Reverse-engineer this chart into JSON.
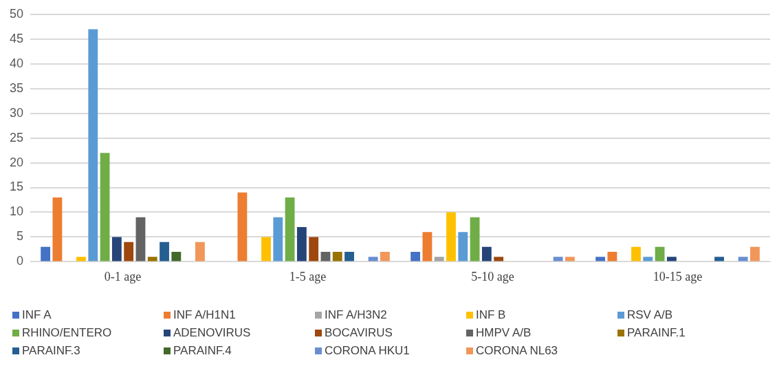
{
  "chart_data": {
    "type": "bar",
    "categories": [
      "0-1 age",
      "1-5 age",
      "5-10 age",
      "10-15 age"
    ],
    "series": [
      {
        "name": "INF A",
        "color": "#4472c4",
        "values": [
          3,
          0,
          2,
          1
        ]
      },
      {
        "name": "INF A/H1N1",
        "color": "#ed7d31",
        "values": [
          13,
          14,
          6,
          2
        ]
      },
      {
        "name": "INF A/H3N2",
        "color": "#a5a5a5",
        "values": [
          0,
          0,
          1,
          0
        ]
      },
      {
        "name": "INF B",
        "color": "#ffc000",
        "values": [
          1,
          5,
          10,
          3
        ]
      },
      {
        "name": "RSV A/B",
        "color": "#5b9bd5",
        "values": [
          47,
          9,
          6,
          1
        ]
      },
      {
        "name": "RHINO/ENTERO",
        "color": "#70ad47",
        "values": [
          22,
          13,
          9,
          3
        ]
      },
      {
        "name": "ADENOVIRUS",
        "color": "#264478",
        "values": [
          5,
          7,
          3,
          1
        ]
      },
      {
        "name": "BOCAVIRUS",
        "color": "#9e480e",
        "values": [
          4,
          5,
          1,
          0
        ]
      },
      {
        "name": "HMPV A/B",
        "color": "#636363",
        "values": [
          9,
          2,
          0,
          0
        ]
      },
      {
        "name": "PARAINF.1",
        "color": "#997300",
        "values": [
          1,
          2,
          0,
          0
        ]
      },
      {
        "name": "PARAINF.3",
        "color": "#255e91",
        "values": [
          4,
          2,
          0,
          1
        ]
      },
      {
        "name": "PARAINF.4",
        "color": "#43682b",
        "values": [
          2,
          0,
          0,
          0
        ]
      },
      {
        "name": "CORONA HKU1",
        "color": "#698ed0",
        "values": [
          0,
          1,
          1,
          1
        ]
      },
      {
        "name": "CORONA NL63",
        "color": "#f1975a",
        "values": [
          4,
          2,
          1,
          3
        ]
      }
    ],
    "ylim": [
      0,
      50
    ],
    "yticks": [
      0,
      5,
      10,
      15,
      20,
      25,
      30,
      35,
      40,
      45,
      50
    ],
    "grid": "y",
    "legend": "bottom"
  }
}
